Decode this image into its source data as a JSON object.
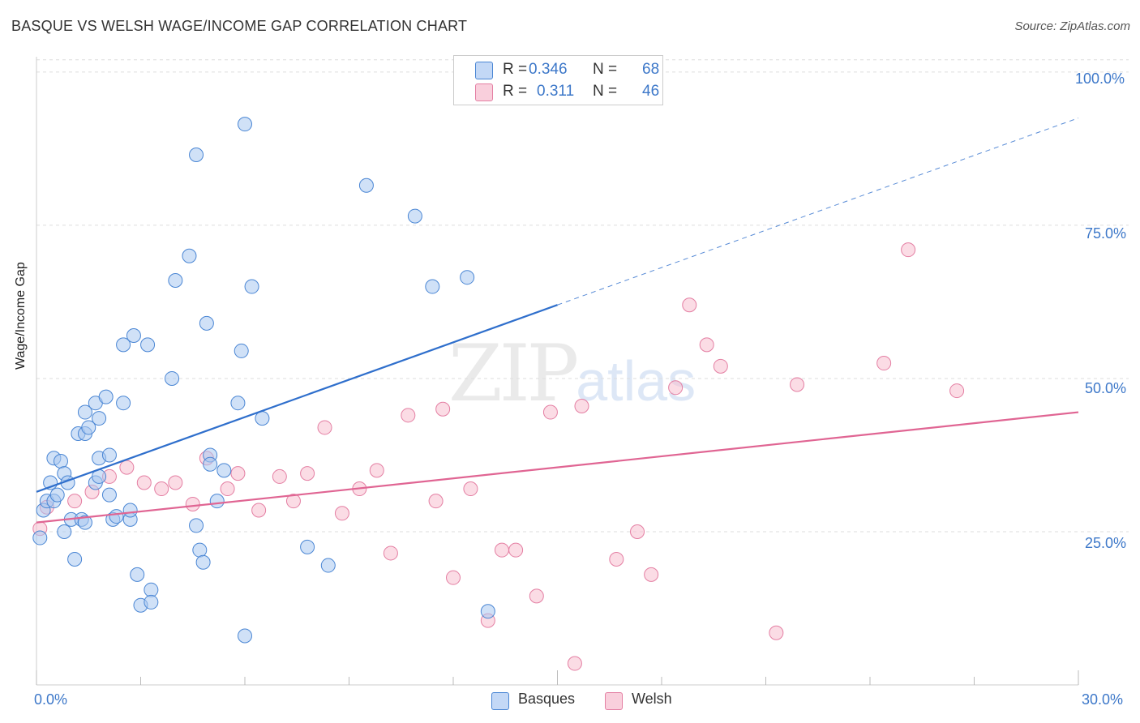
{
  "title": "BASQUE VS WELSH WAGE/INCOME GAP CORRELATION CHART",
  "source": "Source: ZipAtlas.com",
  "watermark": {
    "zip": "ZIP",
    "atlas": "atlas"
  },
  "legend_top": {
    "rows": [
      {
        "label": "R =",
        "r": "0.346",
        "n_label": "N =",
        "n": "68"
      },
      {
        "label": "R =",
        "r": "0.311",
        "n_label": "N =",
        "n": "46"
      }
    ]
  },
  "legend_bottom": {
    "basques": "Basques",
    "welsh": "Welsh"
  },
  "colors": {
    "basques_fill": "#aac8f0",
    "basques_stroke": "#4a86d4",
    "basques_line": "#2f6fcc",
    "welsh_fill": "#f7bfd0",
    "welsh_stroke": "#e47fa3",
    "welsh_line": "#e06593",
    "tick_text": "#3d78c9",
    "grid": "#dddddd"
  },
  "axes": {
    "ylabel": "Wage/Income Gap",
    "x_min_label": "0.0%",
    "x_max_label": "30.0%",
    "y_ticks": [
      "100.0%",
      "75.0%",
      "50.0%",
      "25.0%"
    ]
  },
  "chart_data": {
    "type": "scatter",
    "title": "BASQUE VS WELSH WAGE/INCOME GAP CORRELATION CHART",
    "xlabel": "",
    "ylabel": "Wage/Income Gap",
    "xlim": [
      0,
      30
    ],
    "ylim": [
      0,
      102.5
    ],
    "grid": true,
    "legend_position": "top-center",
    "series": [
      {
        "name": "Basques",
        "r": 0.346,
        "n": 68,
        "trend": {
          "x0": 0,
          "y0": 31.5,
          "x1": 15,
          "y1": 62.0,
          "dashed_to": {
            "x": 30,
            "y": 92.5
          }
        },
        "points": [
          [
            0.1,
            24
          ],
          [
            0.2,
            28.5
          ],
          [
            0.3,
            30
          ],
          [
            0.4,
            33
          ],
          [
            0.5,
            37
          ],
          [
            0.5,
            30
          ],
          [
            0.6,
            31
          ],
          [
            0.7,
            36.5
          ],
          [
            0.8,
            25
          ],
          [
            0.8,
            34.5
          ],
          [
            0.9,
            33
          ],
          [
            1.0,
            27
          ],
          [
            1.1,
            20.5
          ],
          [
            1.2,
            41
          ],
          [
            1.3,
            27
          ],
          [
            1.4,
            41
          ],
          [
            1.4,
            44.5
          ],
          [
            1.4,
            26.5
          ],
          [
            1.5,
            42
          ],
          [
            1.7,
            33
          ],
          [
            1.7,
            46
          ],
          [
            1.8,
            43.5
          ],
          [
            1.8,
            34
          ],
          [
            1.8,
            37
          ],
          [
            2.0,
            47
          ],
          [
            2.1,
            31
          ],
          [
            2.1,
            37.5
          ],
          [
            2.2,
            27
          ],
          [
            2.3,
            27.5
          ],
          [
            2.5,
            46
          ],
          [
            2.5,
            55.5
          ],
          [
            2.7,
            27
          ],
          [
            2.7,
            28.5
          ],
          [
            2.8,
            57
          ],
          [
            2.9,
            18
          ],
          [
            3.0,
            13
          ],
          [
            3.2,
            55.5
          ],
          [
            3.3,
            15.5
          ],
          [
            3.3,
            13.5
          ],
          [
            3.9,
            50
          ],
          [
            4.0,
            66
          ],
          [
            4.4,
            70
          ],
          [
            4.6,
            86.5
          ],
          [
            4.6,
            26
          ],
          [
            4.7,
            22
          ],
          [
            4.8,
            20
          ],
          [
            4.9,
            59
          ],
          [
            5.0,
            37.5
          ],
          [
            5.0,
            36
          ],
          [
            5.2,
            30
          ],
          [
            5.4,
            35
          ],
          [
            5.8,
            46
          ],
          [
            5.9,
            54.5
          ],
          [
            6.0,
            8
          ],
          [
            6.0,
            91.5
          ],
          [
            6.2,
            65
          ],
          [
            6.5,
            43.5
          ],
          [
            7.8,
            22.5
          ],
          [
            8.4,
            19.5
          ],
          [
            9.5,
            81.5
          ],
          [
            10.9,
            76.5
          ],
          [
            11.4,
            65
          ],
          [
            12.4,
            66.5
          ],
          [
            13.0,
            12
          ]
        ]
      },
      {
        "name": "Welsh",
        "r": 0.311,
        "n": 46,
        "trend": {
          "x0": 0,
          "y0": 26.5,
          "x1": 30,
          "y1": 44.5
        },
        "points": [
          [
            0.1,
            25.5
          ],
          [
            0.3,
            29
          ],
          [
            1.1,
            30
          ],
          [
            1.6,
            31.5
          ],
          [
            2.1,
            34
          ],
          [
            2.6,
            35.5
          ],
          [
            3.1,
            33
          ],
          [
            3.6,
            32
          ],
          [
            4.0,
            33
          ],
          [
            4.5,
            29.5
          ],
          [
            4.9,
            37
          ],
          [
            5.5,
            32
          ],
          [
            5.8,
            34.5
          ],
          [
            6.4,
            28.5
          ],
          [
            7.0,
            34
          ],
          [
            7.4,
            30
          ],
          [
            7.8,
            34.5
          ],
          [
            8.3,
            42
          ],
          [
            8.8,
            28
          ],
          [
            9.3,
            32
          ],
          [
            9.8,
            35
          ],
          [
            10.2,
            21.5
          ],
          [
            10.7,
            44
          ],
          [
            11.5,
            30
          ],
          [
            11.7,
            45
          ],
          [
            12.0,
            17.5
          ],
          [
            12.5,
            32
          ],
          [
            13.0,
            10.5
          ],
          [
            13.4,
            22
          ],
          [
            13.8,
            22
          ],
          [
            14.4,
            14.5
          ],
          [
            14.8,
            44.5
          ],
          [
            15.5,
            3.5
          ],
          [
            15.7,
            45.5
          ],
          [
            16.7,
            20.5
          ],
          [
            17.3,
            25
          ],
          [
            17.7,
            18
          ],
          [
            18.4,
            48.5
          ],
          [
            18.8,
            62
          ],
          [
            19.3,
            55.5
          ],
          [
            19.7,
            52
          ],
          [
            21.3,
            8.5
          ],
          [
            21.9,
            49
          ],
          [
            24.4,
            52.5
          ],
          [
            25.1,
            71
          ],
          [
            26.5,
            48
          ]
        ]
      }
    ]
  }
}
